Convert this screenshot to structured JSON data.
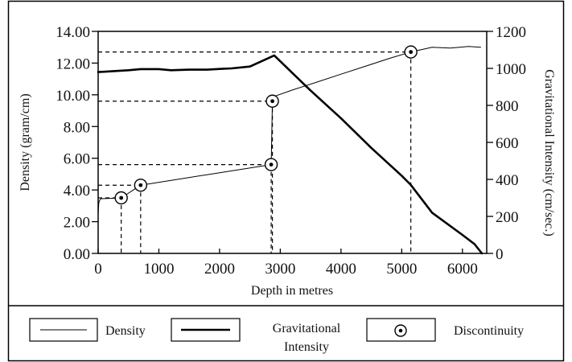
{
  "chart_data": {
    "type": "line",
    "xlabel": "Depth in metres",
    "ylabel_left": "Density (gram/cm)",
    "ylabel_right": "Gravitational Intensity (cm/sec.)",
    "xlim": [
      0,
      6400
    ],
    "ylim_left": [
      0,
      14
    ],
    "ylim_right": [
      0,
      1200
    ],
    "x_ticks": [
      "0",
      "1000",
      "2000",
      "3000",
      "4000",
      "5000",
      "6000"
    ],
    "x_tick_values": [
      0,
      1000,
      2000,
      3000,
      4000,
      5000,
      6000
    ],
    "y_left_ticks": [
      "0.00",
      "2.00",
      "4.00",
      "6.00",
      "8.00",
      "10.00",
      "12.00",
      "14.00"
    ],
    "y_left_tick_values": [
      0,
      2,
      4,
      6,
      8,
      10,
      12,
      14
    ],
    "y_right_ticks": [
      "0",
      "200",
      "400",
      "600",
      "800",
      "1000",
      "1200"
    ],
    "y_right_tick_values": [
      0,
      200,
      400,
      600,
      800,
      1000,
      1200
    ],
    "series": [
      {
        "name": "Density",
        "axis": "left",
        "style": "thin",
        "x": [
          0,
          10,
          30,
          50,
          380,
          700,
          2850,
          2870,
          2900,
          3200,
          3600,
          4000,
          4400,
          4800,
          5150,
          5500,
          5800,
          6100,
          6300
        ],
        "y": [
          2.5,
          3.2,
          3.4,
          3.45,
          3.5,
          4.3,
          5.6,
          9.6,
          9.9,
          10.3,
          10.8,
          11.3,
          11.8,
          12.3,
          12.7,
          13.0,
          12.95,
          13.05,
          13.0
        ]
      },
      {
        "name": "Gravitational Intensity",
        "axis": "right",
        "style": "thick",
        "x": [
          0,
          500,
          700,
          1000,
          1200,
          1500,
          1800,
          2000,
          2200,
          2500,
          2900,
          3500,
          4000,
          4500,
          5000,
          5150,
          5500,
          6000,
          6200,
          6320
        ],
        "y": [
          980,
          990,
          996,
          996,
          990,
          993,
          993,
          997,
          1000,
          1010,
          1070,
          880,
          730,
          570,
          420,
          370,
          220,
          100,
          50,
          0
        ]
      }
    ],
    "discontinuities": [
      {
        "x": 380,
        "y": 3.5,
        "vlines": [
          380
        ]
      },
      {
        "x": 700,
        "y": 4.3,
        "vlines": [
          700
        ]
      },
      {
        "x": 2850,
        "y": 5.6,
        "vlines": [
          2850
        ]
      },
      {
        "x": 2870,
        "y": 9.6,
        "vlines": [
          2870
        ]
      },
      {
        "x": 5150,
        "y": 12.7,
        "vlines": [
          5150
        ]
      }
    ],
    "guide_levels": [
      12.7,
      9.6,
      5.6,
      4.3,
      3.5
    ],
    "grid": false,
    "legend_position": "bottom"
  },
  "legend": {
    "density_label": "Density",
    "gravity_label_line1": "Gravitational",
    "gravity_label_line2": "Intensity",
    "discontinuity_label": "Discontinuity"
  }
}
